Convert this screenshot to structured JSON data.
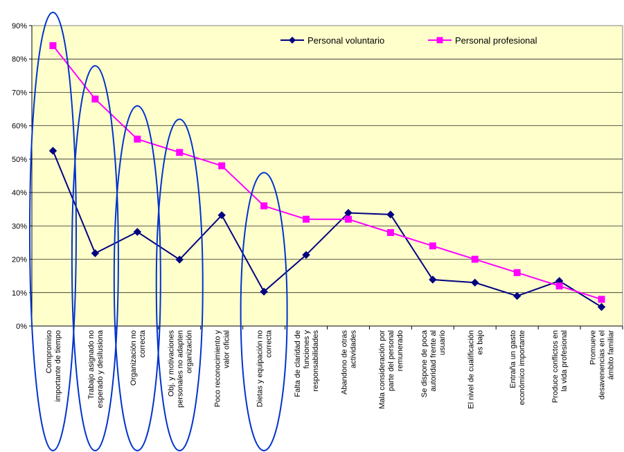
{
  "chart_data": {
    "type": "line",
    "ylim": [
      0,
      0.9
    ],
    "ytick_values": [
      0,
      0.1,
      0.2,
      0.3,
      0.4,
      0.5,
      0.6,
      0.7,
      0.8,
      0.9
    ],
    "ytick_labels": [
      "0%",
      "10%",
      "20%",
      "30%",
      "40%",
      "50%",
      "60%",
      "70%",
      "80%",
      "90%"
    ],
    "plot_background": "#FFFFCC",
    "grid": true,
    "legend_position": "top-right",
    "categories": [
      [
        "Compromiso",
        "importante de tiempo"
      ],
      [
        "Trabajo asignado no",
        "esperado y desilusiona"
      ],
      [
        "Organización no",
        "correcta"
      ],
      [
        "Obj. y motivaciones",
        "personales no adapten",
        "organización"
      ],
      [
        "Poco reconocimiento y",
        "valor oficial"
      ],
      [
        "Dietas y equipación no",
        "correcta"
      ],
      [
        "Falta de claridad de",
        "funciones y",
        "responsabilidades"
      ],
      [
        "Abandono de otras",
        "actividades"
      ],
      [
        "Mala consideración por",
        "parte del personal",
        "remunerado"
      ],
      [
        "Se dispone de poca",
        "autoridad frente al",
        "usuario"
      ],
      [
        "El nivel de cualificación",
        "es bajo"
      ],
      [
        "Entraña un gasto",
        "económico importante"
      ],
      [
        "Produce conflictos en",
        "la vida profesional"
      ],
      [
        "Promueve",
        "desavenencias en el",
        "ámbito familiar"
      ]
    ],
    "series": [
      {
        "name": "Personal voluntario",
        "color": "#000080",
        "marker": "diamond",
        "values": [
          0.525,
          0.218,
          0.282,
          0.199,
          0.332,
          0.103,
          0.213,
          0.339,
          0.334,
          0.139,
          0.13,
          0.09,
          0.135,
          0.057
        ]
      },
      {
        "name": "Personal profesional",
        "color": "#FF00FF",
        "marker": "square",
        "values": [
          0.84,
          0.68,
          0.56,
          0.52,
          0.48,
          0.36,
          0.32,
          0.32,
          0.28,
          0.24,
          0.2,
          0.16,
          0.12,
          0.08
        ]
      }
    ],
    "highlight_ellipses": {
      "color": "#0033CC",
      "category_indices": [
        0,
        1,
        2,
        3,
        5
      ]
    }
  }
}
